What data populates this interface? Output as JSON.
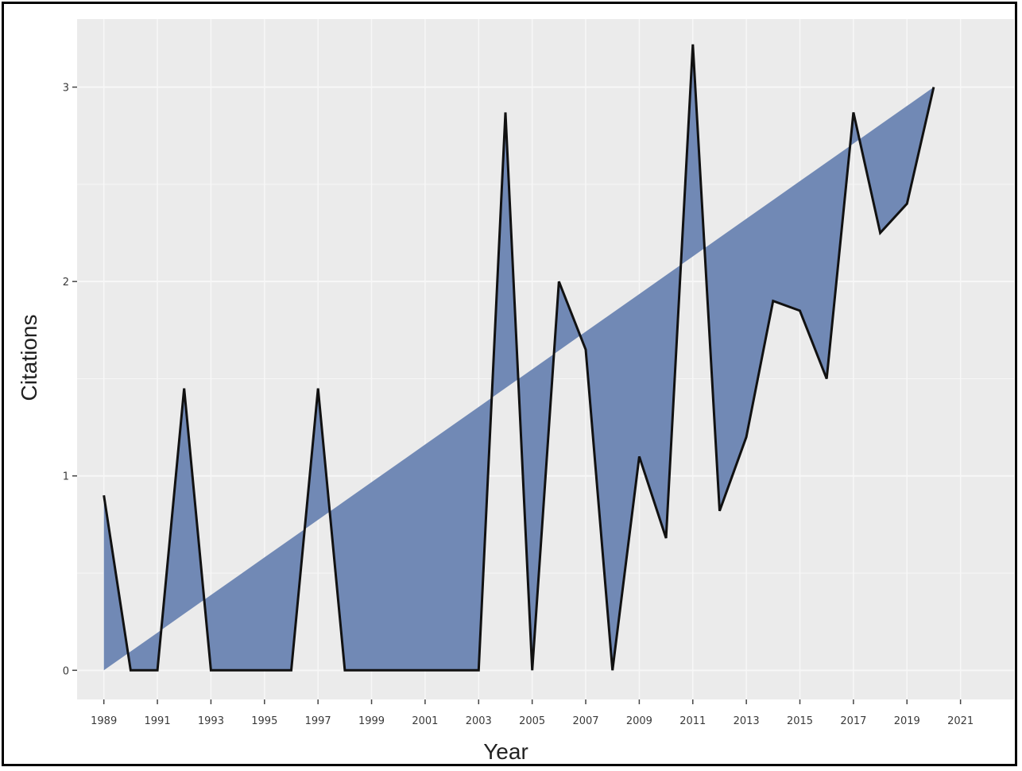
{
  "chart_data": {
    "type": "area",
    "xlabel": "Year",
    "ylabel": "Citations",
    "xlim": [
      1988,
      2023
    ],
    "ylim": [
      -0.15,
      3.35
    ],
    "x_ticks": [
      1989,
      1991,
      1993,
      1995,
      1997,
      1999,
      2001,
      2003,
      2005,
      2007,
      2009,
      2011,
      2013,
      2015,
      2017,
      2019,
      2021
    ],
    "y_ticks": [
      0,
      1,
      2,
      3
    ],
    "grid": true,
    "series": [
      {
        "x": [
          1989,
          1990,
          1991,
          1992,
          1993,
          1994,
          1995,
          1996,
          1997,
          1998,
          1999,
          2000,
          2001,
          2002,
          2003,
          2004,
          2005,
          2006,
          2007,
          2008,
          2009,
          2010,
          2011,
          2012,
          2013,
          2014,
          2015,
          2016,
          2017,
          2018,
          2019,
          2020
        ],
        "values": [
          0.9,
          0,
          0,
          1.45,
          0,
          0,
          0,
          0,
          1.45,
          0,
          0,
          0,
          0,
          0,
          0,
          2.87,
          0,
          2.0,
          1.65,
          0,
          1.1,
          0.68,
          3.22,
          0.82,
          1.2,
          1.9,
          1.85,
          1.5,
          2.87,
          2.25,
          2.4,
          3.0
        ]
      }
    ],
    "trend": {
      "x": [
        1989,
        2020
      ],
      "values": [
        0,
        3.0
      ]
    },
    "colors": {
      "fill": "#7189b5",
      "outline": "#111111",
      "panel": "#ebebeb",
      "grid": "#f7f7f7"
    }
  }
}
